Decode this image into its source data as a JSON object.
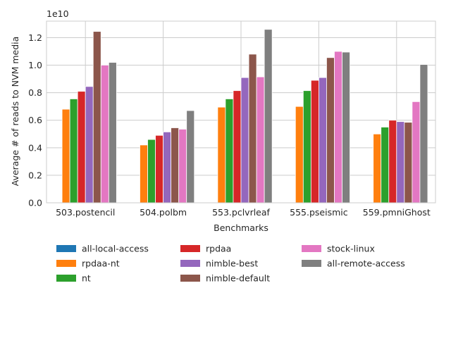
{
  "chart_data": {
    "type": "bar",
    "title": "",
    "xlabel": "Benchmarks",
    "ylabel": "Average # of reads to NVM media",
    "y_scale_label": "1e10",
    "y_unit_scale": 10000000000,
    "ylim": [
      0,
      13200000000
    ],
    "yticks": [
      0,
      2000000000,
      4000000000,
      6000000000,
      8000000000,
      10000000000,
      12000000000
    ],
    "ytick_labels": [
      "0.0",
      "0.2",
      "0.4",
      "0.6",
      "0.8",
      "1.0",
      "1.2"
    ],
    "grid": true,
    "legend_position": "bottom",
    "categories": [
      "503.postencil",
      "504.polbm",
      "553.pclvrleaf",
      "555.pseismic",
      "559.pmniGhost"
    ],
    "series": [
      {
        "name": "all-local-access",
        "color": "#1f77b4",
        "values": [
          0,
          0,
          0,
          0,
          0
        ]
      },
      {
        "name": "rpdaa-nt",
        "color": "#ff7f0e",
        "values": [
          6800000000,
          4200000000,
          6950000000,
          7000000000,
          5000000000
        ]
      },
      {
        "name": "nt",
        "color": "#2ca02c",
        "values": [
          7550000000,
          4600000000,
          7550000000,
          8150000000,
          5500000000
        ]
      },
      {
        "name": "rpdaa",
        "color": "#d62728",
        "values": [
          8100000000,
          4900000000,
          8150000000,
          8900000000,
          6000000000
        ]
      },
      {
        "name": "nimble-best",
        "color": "#9467bd",
        "values": [
          8450000000,
          5150000000,
          9100000000,
          9100000000,
          5900000000
        ]
      },
      {
        "name": "nimble-default",
        "color": "#8c564b",
        "values": [
          12450000000,
          5450000000,
          10800000000,
          10550000000,
          5850000000
        ]
      },
      {
        "name": "stock-linux",
        "color": "#e377c2",
        "values": [
          10000000000,
          5350000000,
          9150000000,
          11000000000,
          7350000000
        ]
      },
      {
        "name": "all-remote-access",
        "color": "#7f7f7f",
        "values": [
          10200000000,
          6700000000,
          12600000000,
          10950000000,
          10050000000
        ]
      }
    ]
  }
}
